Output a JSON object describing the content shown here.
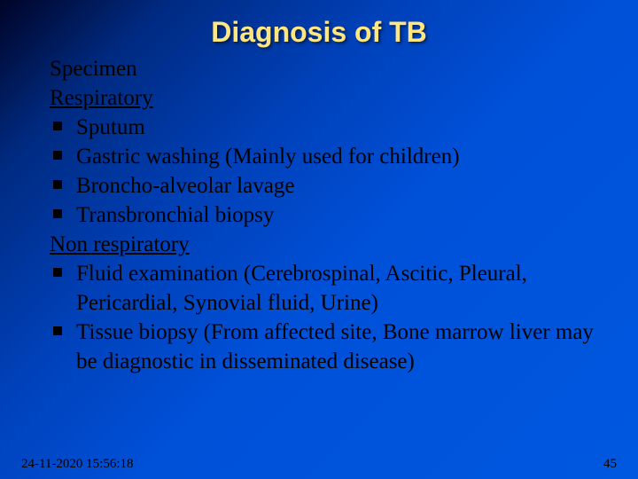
{
  "slide": {
    "title": "Diagnosis of TB",
    "title_color": "#ffe680",
    "title_fontsize": 32,
    "title_font": "Gill Sans",
    "body_font": "Times New Roman",
    "body_fontsize": 25,
    "body_color": "#000000",
    "gradient": {
      "start": "#000428",
      "mid1": "#002a80",
      "mid2": "#0040b8",
      "end": "#0058e0"
    },
    "bullet_marker_color": "#000000",
    "lines": [
      {
        "text": "Specimen",
        "bullet": false,
        "underline": false
      },
      {
        "text": "Respiratory",
        "bullet": false,
        "underline": true
      },
      {
        "text": "Sputum",
        "bullet": true,
        "underline": false
      },
      {
        "text": "Gastric washing (Mainly used for children)",
        "bullet": true,
        "underline": false
      },
      {
        "text": "Broncho-alveolar lavage",
        "bullet": true,
        "underline": false
      },
      {
        "text": "Transbronchial biopsy",
        "bullet": true,
        "underline": false
      },
      {
        "text": "Non respiratory",
        "bullet": false,
        "underline": true
      },
      {
        "text": "Fluid examination (Cerebrospinal, Ascitic, Pleural, Pericardial, Synovial fluid, Urine)",
        "bullet": true,
        "underline": false
      },
      {
        "text": "Tissue biopsy (From affected site, Bone marrow liver may be diagnostic in disseminated disease)",
        "bullet": true,
        "underline": false
      }
    ],
    "footer": {
      "datetime": "24-11-2020 15:56:18",
      "page": "45",
      "fontsize": 15
    }
  }
}
